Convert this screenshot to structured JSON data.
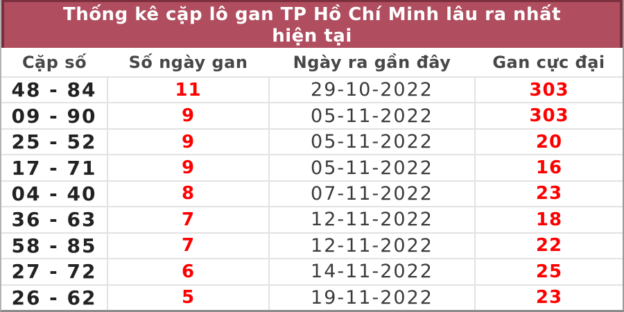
{
  "title": {
    "line1": "Thống kê cặp lô gan TP Hồ Chí Minh lâu ra nhất",
    "line2": "hiện tại"
  },
  "colors": {
    "header_bg": "#b04d5f",
    "header_border": "#7b2f3d",
    "header_text": "#ffffff",
    "column_header_text": "#474747",
    "pair_text": "#222222",
    "date_text": "#3a3a3a",
    "accent_red": "#ff0000",
    "row_divider": "#e2e2e2"
  },
  "table": {
    "columns": [
      "Cặp số",
      "Số ngày gan",
      "Ngày ra gần đây",
      "Gan cực đại"
    ],
    "rows": [
      {
        "pair": "48 - 84",
        "gan_days": "11",
        "recent_date": "29-10-2022",
        "max_gan": "303"
      },
      {
        "pair": "09 - 90",
        "gan_days": "9",
        "recent_date": "05-11-2022",
        "max_gan": "303"
      },
      {
        "pair": "25 - 52",
        "gan_days": "9",
        "recent_date": "05-11-2022",
        "max_gan": "20"
      },
      {
        "pair": "17 - 71",
        "gan_days": "9",
        "recent_date": "05-11-2022",
        "max_gan": "16"
      },
      {
        "pair": "04 - 40",
        "gan_days": "8",
        "recent_date": "07-11-2022",
        "max_gan": "23"
      },
      {
        "pair": "36 - 63",
        "gan_days": "7",
        "recent_date": "12-11-2022",
        "max_gan": "18"
      },
      {
        "pair": "58 - 85",
        "gan_days": "7",
        "recent_date": "12-11-2022",
        "max_gan": "22"
      },
      {
        "pair": "27 - 72",
        "gan_days": "6",
        "recent_date": "14-11-2022",
        "max_gan": "25"
      },
      {
        "pair": "26 - 62",
        "gan_days": "5",
        "recent_date": "19-11-2022",
        "max_gan": "23"
      }
    ]
  }
}
